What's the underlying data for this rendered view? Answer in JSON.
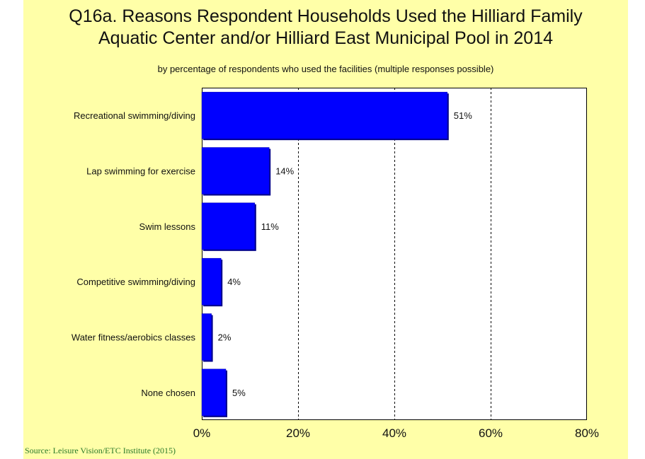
{
  "chart_data": {
    "type": "bar",
    "orientation": "horizontal",
    "title_lines": [
      "Q16a. Reasons Respondent Households Used the Hilliard Family",
      "Aquatic Center and/or Hilliard East Municipal Pool in 2014"
    ],
    "subtitle": "by percentage of respondents who used the facilities (multiple responses possible)",
    "categories": [
      "Recreational swimming/diving",
      "Lap swimming for exercise",
      "Swim lessons",
      "Competitive swimming/diving",
      "Water fitness/aerobics classes",
      "None chosen"
    ],
    "values": [
      51,
      14,
      11,
      4,
      2,
      5
    ],
    "value_labels": [
      "51%",
      "14%",
      "11%",
      "4%",
      "2%",
      "5%"
    ],
    "xlim": [
      0,
      80
    ],
    "xticks": [
      0,
      20,
      40,
      60,
      80
    ],
    "xtick_labels": [
      "0%",
      "20%",
      "40%",
      "60%",
      "80%"
    ],
    "grid": "vertical dashed",
    "bar_color": "#0000ff",
    "background_color": "#ffffa8",
    "source": "Source:  Leisure Vision/ETC Institute (2015)"
  }
}
